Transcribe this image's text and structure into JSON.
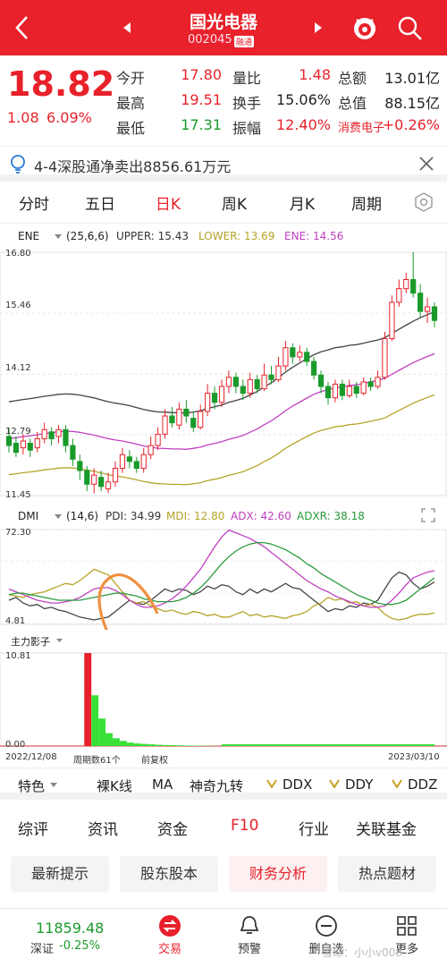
{
  "header": {
    "title": "国光电器",
    "code": "002045",
    "tag": "融通"
  },
  "quote": {
    "price": "18.82",
    "change": "1.08",
    "change_pct": "6.09%",
    "rows": [
      [
        {
          "label": "今开",
          "value": "17.80",
          "color": "red"
        },
        {
          "label": "量比",
          "value": "1.48",
          "color": "red"
        },
        {
          "label": "总额",
          "value": "13.01亿",
          "color": "black"
        }
      ],
      [
        {
          "label": "最高",
          "value": "19.51",
          "color": "red"
        },
        {
          "label": "换手",
          "value": "15.06%",
          "color": "black"
        },
        {
          "label": "总值",
          "value": "88.15亿",
          "color": "black"
        }
      ],
      [
        {
          "label": "最低",
          "value": "17.31",
          "color": "green"
        },
        {
          "label": "振幅",
          "value": "12.40%",
          "color": "red"
        },
        {
          "label": "消费电子",
          "value": "+0.26%",
          "color": "red"
        }
      ]
    ]
  },
  "notice": {
    "text": "4-4深股通净卖出8856.61万元"
  },
  "period_tabs": [
    {
      "label": "分时"
    },
    {
      "label": "五日"
    },
    {
      "label": "日K",
      "active": true
    },
    {
      "label": "周K"
    },
    {
      "label": "月K"
    },
    {
      "label": "周期"
    }
  ],
  "ene": {
    "name": "ENE",
    "params": "(25,6,6)",
    "upper": "UPPER: 15.43",
    "lower": "LOWER: 13.69",
    "ene": "ENE: 14.56",
    "ticks": [
      "16.80",
      "15.46",
      "14.12",
      "12.79",
      "11.45"
    ]
  },
  "dmi": {
    "name": "DMI",
    "params": "(14,6)",
    "pdi": "PDI: 34.99",
    "mdi": "MDI: 12.80",
    "adx": "ADX: 42.60",
    "adxr": "ADXR: 38.18",
    "top": "72.30",
    "bottom": "4.81"
  },
  "zl": {
    "name": "主力影子",
    "top": "10.81",
    "bottom": "0.00"
  },
  "axis": {
    "start": "2022/12/08",
    "count": "周期数61个",
    "adj": "前复权",
    "end": "2023/03/10"
  },
  "indicator_tools": [
    "特色",
    "裸K线",
    "MA",
    "神奇九转",
    "DDX",
    "DDY",
    "DDZ"
  ],
  "f10_tabs": [
    {
      "label": "综评"
    },
    {
      "label": "资讯"
    },
    {
      "label": "资金"
    },
    {
      "label": "F10",
      "active": true
    },
    {
      "label": "行业"
    },
    {
      "label": "关联基金"
    }
  ],
  "chips": [
    {
      "label": "最新提示"
    },
    {
      "label": "股东股本"
    },
    {
      "label": "财务分析",
      "active": true
    },
    {
      "label": "热点题材"
    }
  ],
  "bottom_nav": {
    "index_value": "11859.48",
    "index_label": "深证",
    "index_change": "-0.25%",
    "items": [
      {
        "label": "交易",
        "icon": "trade-icon"
      },
      {
        "label": "预警",
        "icon": "bell-icon"
      },
      {
        "label": "删自选",
        "icon": "minus-circle-icon"
      },
      {
        "label": "更多",
        "icon": "grid-icon"
      }
    ],
    "watermark": "雪球：小小v008"
  },
  "colors": {
    "brand_red": "#e8212a",
    "up": "#e8212a",
    "down": "#1a9a2a",
    "upper": "#444444",
    "lower": "#b5a428",
    "ene_line": "#c040c0"
  }
}
